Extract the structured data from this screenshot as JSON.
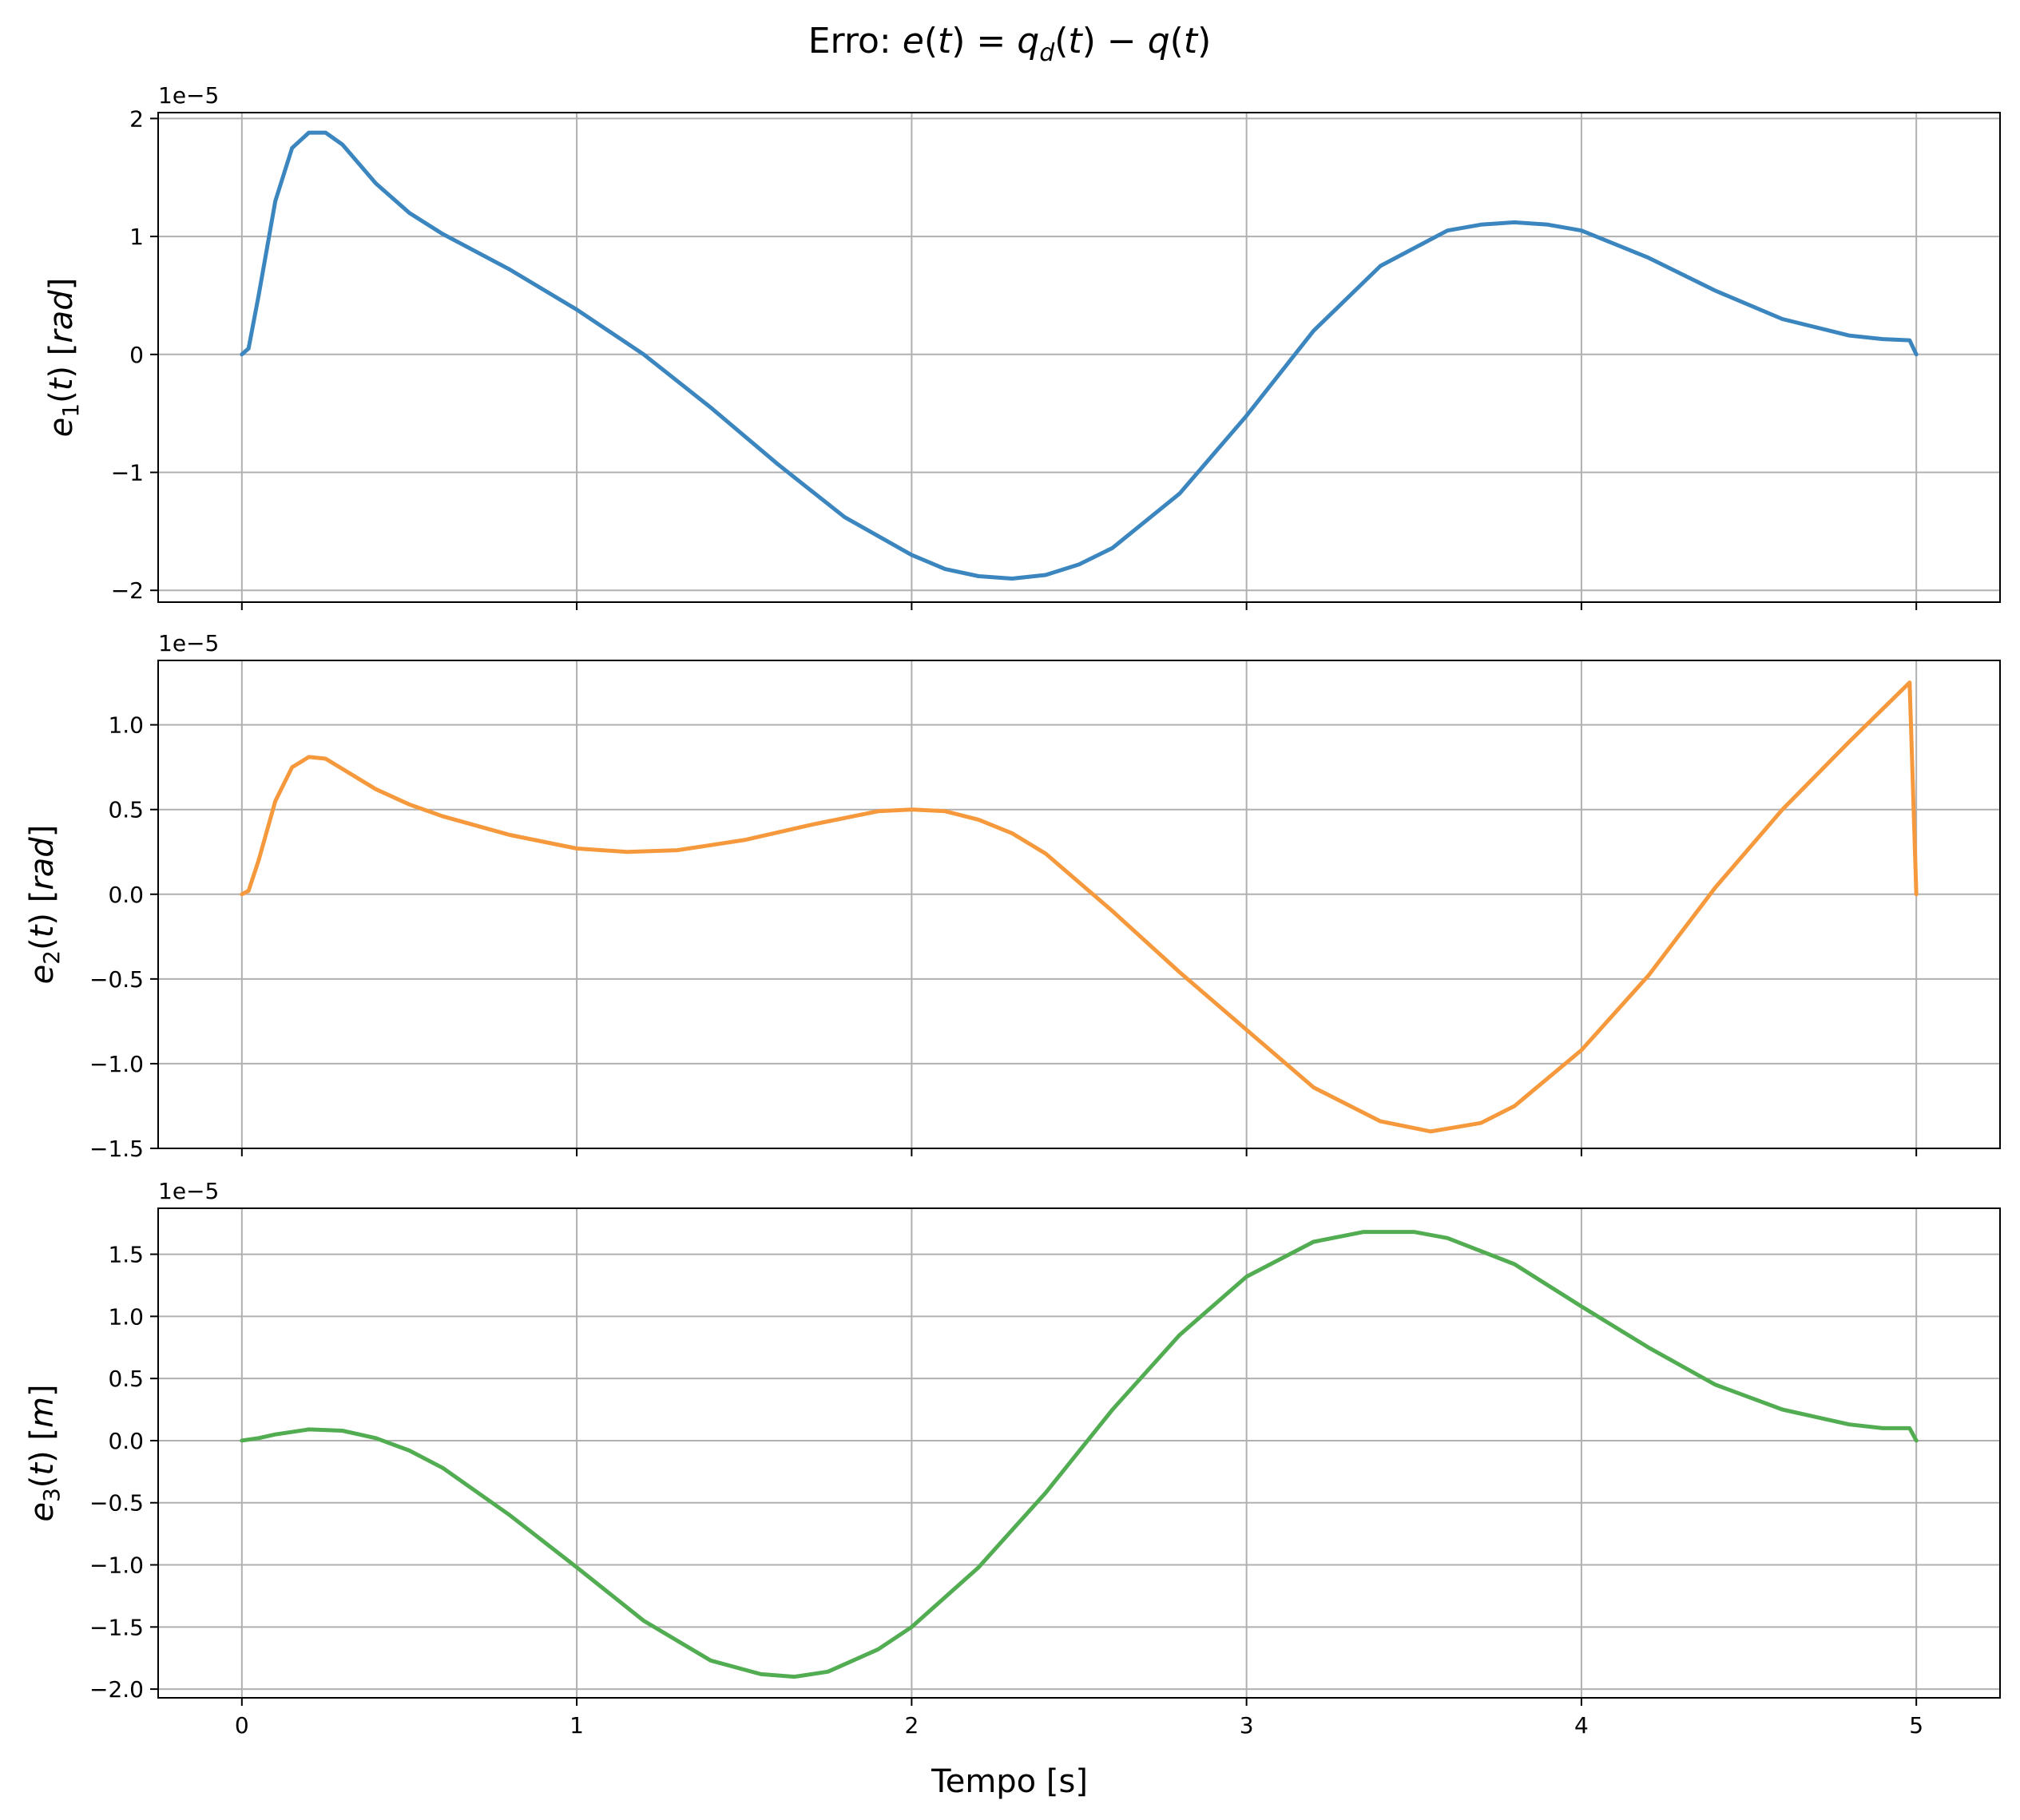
{
  "chart_data": {
    "type": "line",
    "title": "Erro: e(t) = q_d(t) − q(t)",
    "xlabel": "Tempo [s]",
    "xlim": [
      -0.25,
      5.25
    ],
    "xticks": [
      0,
      1,
      2,
      3,
      4,
      5
    ],
    "xtick_labels": [
      "0",
      "1",
      "2",
      "3",
      "4",
      "5"
    ],
    "grid": true,
    "panels": [
      {
        "ylabel": "e1(t) [rad]",
        "offset_text": "1e−5",
        "color": "#3c86c0",
        "ylim": [
          -2.1,
          2.05
        ],
        "yticks": [
          -2,
          -1,
          0,
          1,
          2
        ],
        "ytick_labels": [
          "−2",
          "−1",
          "0",
          "1",
          "2"
        ],
        "series": {
          "x": [
            0,
            0.02,
            0.05,
            0.1,
            0.15,
            0.2,
            0.25,
            0.3,
            0.4,
            0.5,
            0.6,
            0.8,
            1.0,
            1.2,
            1.4,
            1.6,
            1.8,
            2.0,
            2.1,
            2.2,
            2.3,
            2.4,
            2.5,
            2.6,
            2.8,
            3.0,
            3.2,
            3.4,
            3.6,
            3.7,
            3.8,
            3.9,
            4.0,
            4.2,
            4.4,
            4.6,
            4.8,
            4.9,
            4.98,
            5.0
          ],
          "y": [
            0,
            0.05,
            0.5,
            1.3,
            1.75,
            1.88,
            1.88,
            1.78,
            1.45,
            1.2,
            1.02,
            0.72,
            0.38,
            0.0,
            -0.45,
            -0.93,
            -1.38,
            -1.7,
            -1.82,
            -1.88,
            -1.9,
            -1.87,
            -1.78,
            -1.64,
            -1.18,
            -0.52,
            0.2,
            0.75,
            1.05,
            1.1,
            1.12,
            1.1,
            1.05,
            0.82,
            0.54,
            0.3,
            0.16,
            0.13,
            0.12,
            0
          ]
        }
      },
      {
        "ylabel": "e2(t) [rad]",
        "offset_text": "1e−5",
        "color": "#f5993c",
        "ylim": [
          -1.5,
          1.38
        ],
        "yticks": [
          -1.5,
          -1.0,
          -0.5,
          0.0,
          0.5,
          1.0
        ],
        "ytick_labels": [
          "−1.5",
          "−1.0",
          "−0.5",
          "0.0",
          "0.5",
          "1.0"
        ],
        "series": {
          "x": [
            0,
            0.02,
            0.05,
            0.1,
            0.15,
            0.2,
            0.25,
            0.3,
            0.4,
            0.5,
            0.6,
            0.8,
            1.0,
            1.15,
            1.3,
            1.5,
            1.7,
            1.9,
            2.0,
            2.1,
            2.2,
            2.3,
            2.4,
            2.6,
            2.8,
            3.0,
            3.2,
            3.4,
            3.55,
            3.7,
            3.8,
            4.0,
            4.2,
            4.4,
            4.6,
            4.8,
            4.98,
            5.0
          ],
          "y": [
            0,
            0.02,
            0.2,
            0.55,
            0.75,
            0.81,
            0.8,
            0.74,
            0.62,
            0.53,
            0.46,
            0.35,
            0.27,
            0.25,
            0.26,
            0.32,
            0.41,
            0.49,
            0.5,
            0.49,
            0.44,
            0.36,
            0.24,
            -0.1,
            -0.46,
            -0.8,
            -1.14,
            -1.34,
            -1.4,
            -1.35,
            -1.25,
            -0.92,
            -0.48,
            0.04,
            0.5,
            0.9,
            1.25,
            0
          ]
        }
      },
      {
        "ylabel": "e3(t) [m]",
        "offset_text": "1e−5",
        "color": "#52ad52",
        "ylim": [
          -2.07,
          1.87
        ],
        "yticks": [
          -2.0,
          -1.5,
          -1.0,
          -0.5,
          0.0,
          0.5,
          1.0,
          1.5
        ],
        "ytick_labels": [
          "−2.0",
          "−1.5",
          "−1.0",
          "−0.5",
          "0.0",
          "0.5",
          "1.0",
          "1.5"
        ],
        "series": {
          "x": [
            0,
            0.05,
            0.1,
            0.2,
            0.3,
            0.4,
            0.5,
            0.6,
            0.8,
            1.0,
            1.2,
            1.4,
            1.55,
            1.65,
            1.75,
            1.9,
            2.0,
            2.2,
            2.4,
            2.6,
            2.8,
            3.0,
            3.2,
            3.35,
            3.5,
            3.6,
            3.8,
            4.0,
            4.2,
            4.4,
            4.6,
            4.8,
            4.9,
            4.98,
            5.0
          ],
          "y": [
            0,
            0.02,
            0.05,
            0.09,
            0.08,
            0.02,
            -0.08,
            -0.22,
            -0.6,
            -1.02,
            -1.45,
            -1.77,
            -1.88,
            -1.9,
            -1.86,
            -1.68,
            -1.5,
            -1.02,
            -0.42,
            0.25,
            0.85,
            1.32,
            1.6,
            1.68,
            1.68,
            1.63,
            1.42,
            1.08,
            0.75,
            0.45,
            0.25,
            0.13,
            0.1,
            0.1,
            0
          ]
        }
      }
    ]
  }
}
